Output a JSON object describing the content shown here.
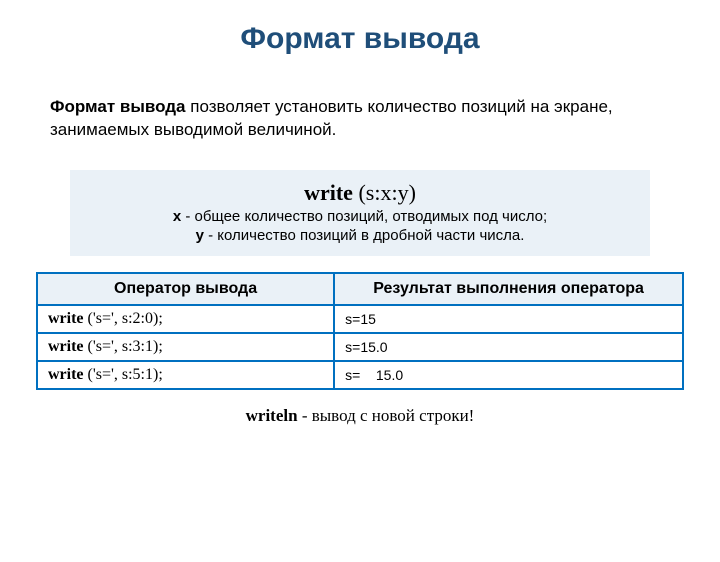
{
  "title": "Формат вывода",
  "intro": {
    "indent": "        ",
    "bold": "Формат вывода",
    "rest": " позволяет установить количество позиций на экране, занимаемых выводимой величиной."
  },
  "infobox": {
    "title_bold": "write",
    "title_rest": " (s:x:y)",
    "line1_var": "x",
    "line1_rest": " - общее количество позиций, отводимых под число;",
    "line2_var": "y",
    "line2_rest": " -  количество позиций в дробной части числа.",
    "background_color": "#eaf1f7"
  },
  "table": {
    "border_color": "#0070c0",
    "header_bg": "#eaf1f7",
    "columns": [
      "Оператор вывода",
      "Результат выполнения оператора"
    ],
    "rows": [
      {
        "op_bold": "write",
        "op_rest": " ('s=', s:2:0);",
        "result": "s=15"
      },
      {
        "op_bold": "write",
        "op_rest": " ('s=', s:3:1);",
        "result": "s=15.0"
      },
      {
        "op_bold": "write",
        "op_rest": " ('s=', s:5:1);",
        "result": "s=    15.0"
      }
    ]
  },
  "footer": {
    "bold": "writeln ",
    "rest": " -  вывод с  новой строки!"
  }
}
